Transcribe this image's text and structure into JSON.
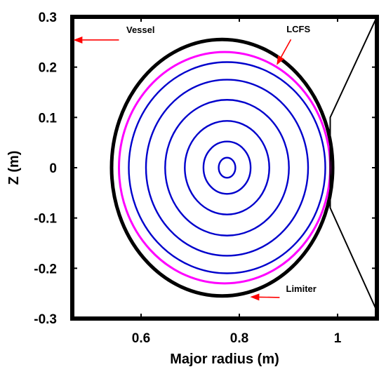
{
  "chart_data": {
    "type": "line",
    "title": "",
    "xlabel": "Major radius (m)",
    "ylabel": "Z (m)",
    "xlim": [
      0.46,
      1.08
    ],
    "ylim": [
      -0.3,
      0.3
    ],
    "xticks": [
      0.6,
      0.8,
      1
    ],
    "xtick_labels": [
      "0.6",
      "0.8",
      "1"
    ],
    "yticks": [
      0.3,
      0.2,
      0.1,
      0,
      -0.1,
      -0.2,
      -0.3
    ],
    "ytick_labels": [
      "0.3",
      "0.2",
      "0.1",
      "0",
      "-0.1",
      "-0.2",
      "-0.3"
    ],
    "grid": false,
    "colors": {
      "vessel": "#000000",
      "limiter": "#000000",
      "lcfs": "#ff00ff",
      "flux_surfaces": "#0000cc",
      "arrows": "#ff0000"
    },
    "limiter": {
      "name": "Limiter",
      "center": [
        0.765,
        0
      ],
      "radius_r": 0.225,
      "radius_z": 0.255
    },
    "lcfs": {
      "name": "LCFS",
      "center": [
        0.77,
        0
      ],
      "radius_r": 0.215,
      "radius_z": 0.23
    },
    "flux_surfaces": [
      {
        "center": [
          0.775,
          0
        ],
        "radius_r": 0.2,
        "radius_z": 0.21
      },
      {
        "center": [
          0.775,
          0
        ],
        "radius_r": 0.165,
        "radius_z": 0.175
      },
      {
        "center": [
          0.775,
          0
        ],
        "radius_r": 0.126,
        "radius_z": 0.135
      },
      {
        "center": [
          0.775,
          0
        ],
        "radius_r": 0.086,
        "radius_z": 0.093
      },
      {
        "center": [
          0.775,
          0
        ],
        "radius_r": 0.048,
        "radius_z": 0.052
      },
      {
        "center": [
          0.775,
          0
        ],
        "radius_r": 0.017,
        "radius_z": 0.02
      }
    ],
    "vessel_wall_right": [
      [
        1.08,
        0.3
      ],
      [
        0.985,
        0.1
      ],
      [
        0.985,
        -0.08
      ],
      [
        1.08,
        -0.285
      ]
    ],
    "annotations": [
      {
        "label": "Vessel",
        "text_at": [
          0.57,
          0.268
        ],
        "arrow_from": [
          0.555,
          0.254
        ],
        "arrow_to": [
          0.462,
          0.254
        ]
      },
      {
        "label": "LCFS",
        "text_at": [
          0.896,
          0.269
        ],
        "arrow_from": [
          0.905,
          0.255
        ],
        "arrow_to": [
          0.876,
          0.204
        ]
      },
      {
        "label": "Limiter",
        "text_at": [
          0.895,
          -0.247
        ],
        "arrow_from": [
          0.882,
          -0.258
        ],
        "arrow_to": [
          0.822,
          -0.257
        ]
      }
    ]
  }
}
